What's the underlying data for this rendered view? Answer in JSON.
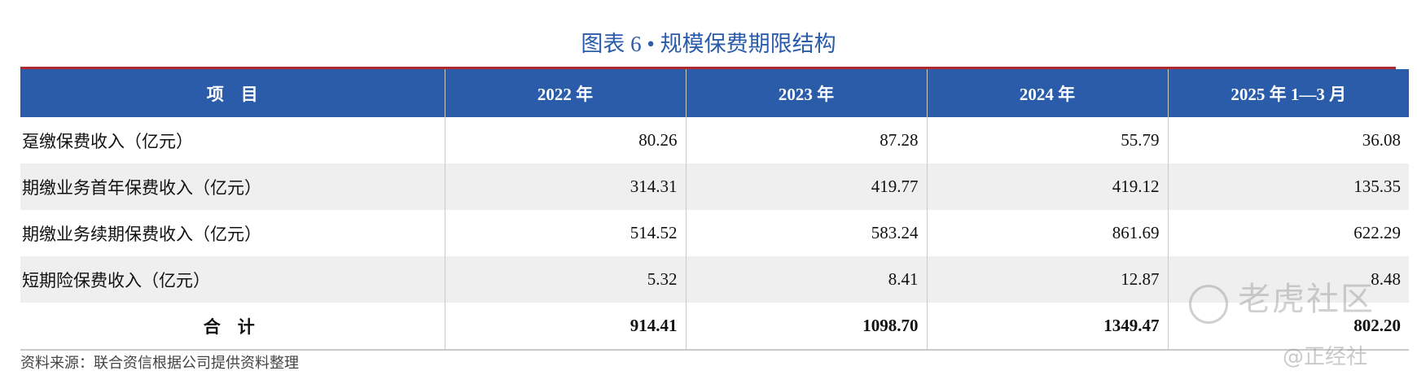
{
  "title": "图表 6 • 规模保费期限结构",
  "colors": {
    "title": "#2a5caa",
    "header_bg": "#2a5caa",
    "accent_line": "#b0272d"
  },
  "table": {
    "headers": [
      "项　目",
      "2022 年",
      "2023 年",
      "2024 年",
      "2025 年 1—3 月"
    ],
    "rows": [
      {
        "label": "趸缴保费收入（亿元）",
        "values": [
          "80.26",
          "87.28",
          "55.79",
          "36.08"
        ]
      },
      {
        "label": "期缴业务首年保费收入（亿元）",
        "values": [
          "314.31",
          "419.77",
          "419.12",
          "135.35"
        ]
      },
      {
        "label": "期缴业务续期保费收入（亿元）",
        "values": [
          "514.52",
          "583.24",
          "861.69",
          "622.29"
        ]
      },
      {
        "label": "短期险保费收入（亿元）",
        "values": [
          "5.32",
          "8.41",
          "12.87",
          "8.48"
        ]
      }
    ],
    "total": {
      "label": "合　计",
      "values": [
        "914.41",
        "1098.70",
        "1349.47",
        "802.20"
      ]
    }
  },
  "source": "资料来源：联合资信根据公司提供资料整理",
  "watermarks": {
    "main": "老虎社区",
    "sub": "@正经社"
  }
}
